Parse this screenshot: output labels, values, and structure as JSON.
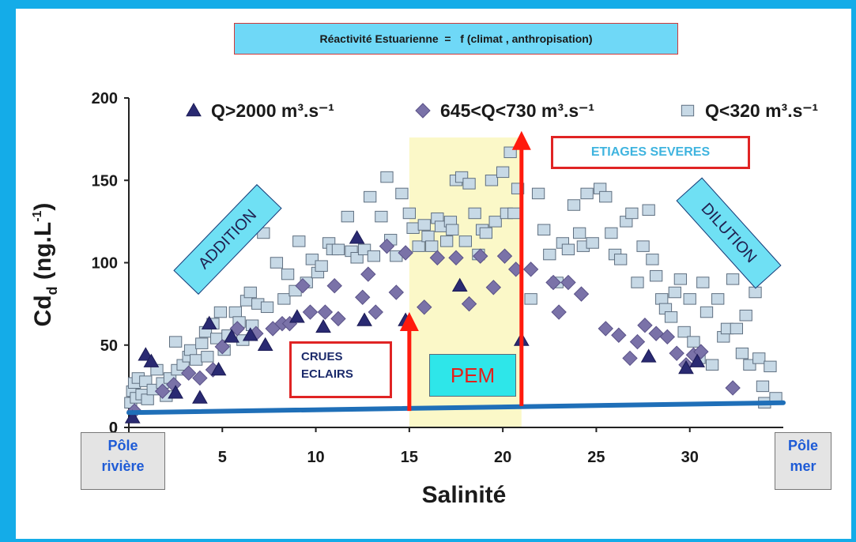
{
  "header": {
    "title": "Réactivité Estuarienne  =   f (climat , anthropisation)"
  },
  "chart_data": {
    "type": "scatter",
    "xlabel": "Salinité",
    "ylabel_main": "Cd",
    "ylabel_sub": "d",
    "ylabel_rest": " (ng.L",
    "ylabel_sup": "-1",
    "ylabel_end": ")",
    "xlim": [
      0,
      35
    ],
    "ylim": [
      0,
      200
    ],
    "x_ticks": [
      "0",
      "5",
      "10",
      "15",
      "20",
      "25",
      "30"
    ],
    "x_tick_values": [
      0,
      5,
      10,
      15,
      20,
      25,
      30
    ],
    "y_ticks": [
      "0",
      "50",
      "100",
      "150",
      "200"
    ],
    "y_tick_values": [
      0,
      50,
      100,
      150,
      200
    ],
    "legend": [
      {
        "name": "Q>2000 m³.s⁻¹",
        "marker": "triangle",
        "color": "#2a2a72"
      },
      {
        "name": "645<Q<730 m³.s⁻¹",
        "marker": "diamond",
        "color": "#7a72a8"
      },
      {
        "name": "Q<320 m³.s⁻¹",
        "marker": "square",
        "color": "#c7d9e6"
      }
    ],
    "pem_zone_x": [
      15,
      21
    ],
    "pem_zone_ymax": 176,
    "baseline": [
      [
        0,
        9
      ],
      [
        35,
        15
      ]
    ],
    "arrows": [
      {
        "x": 15,
        "y_from": 10,
        "y_to": 70
      },
      {
        "x": 21,
        "y_from": 13,
        "y_to": 180
      }
    ],
    "series": [
      {
        "name": "Q>2000 m³.s⁻¹",
        "marker": "triangle",
        "points": [
          [
            0.2,
            6
          ],
          [
            0.9,
            44
          ],
          [
            1.2,
            40
          ],
          [
            2.5,
            21
          ],
          [
            3.8,
            18
          ],
          [
            4.3,
            63
          ],
          [
            4.8,
            35
          ],
          [
            5.5,
            55
          ],
          [
            6.5,
            56
          ],
          [
            7.3,
            50
          ],
          [
            9.0,
            67
          ],
          [
            10.4,
            61
          ],
          [
            12.2,
            115
          ],
          [
            12.6,
            65
          ],
          [
            14.8,
            65
          ],
          [
            17.7,
            86
          ],
          [
            21.0,
            53
          ],
          [
            27.8,
            43
          ],
          [
            29.8,
            36
          ],
          [
            30.4,
            40
          ]
        ]
      },
      {
        "name": "645<Q<730 m³.s⁻¹",
        "marker": "diamond",
        "points": [
          [
            0.3,
            10
          ],
          [
            1.8,
            22
          ],
          [
            2.4,
            26
          ],
          [
            3.2,
            33
          ],
          [
            3.8,
            30
          ],
          [
            4.5,
            35
          ],
          [
            5.0,
            49
          ],
          [
            5.8,
            60
          ],
          [
            6.8,
            57
          ],
          [
            7.7,
            60
          ],
          [
            8.2,
            63
          ],
          [
            8.6,
            63
          ],
          [
            9.3,
            86
          ],
          [
            9.7,
            70
          ],
          [
            10.5,
            70
          ],
          [
            11.0,
            86
          ],
          [
            11.2,
            66
          ],
          [
            12.5,
            79
          ],
          [
            12.8,
            93
          ],
          [
            13.2,
            70
          ],
          [
            13.8,
            110
          ],
          [
            14.3,
            82
          ],
          [
            14.8,
            106
          ],
          [
            15.8,
            73
          ],
          [
            16.5,
            103
          ],
          [
            17.5,
            103
          ],
          [
            18.2,
            75
          ],
          [
            18.8,
            104
          ],
          [
            19.5,
            85
          ],
          [
            20.1,
            104
          ],
          [
            20.7,
            96
          ],
          [
            21.5,
            96
          ],
          [
            22.7,
            88
          ],
          [
            23.0,
            70
          ],
          [
            23.5,
            88
          ],
          [
            24.2,
            81
          ],
          [
            25.5,
            60
          ],
          [
            26.2,
            56
          ],
          [
            26.8,
            42
          ],
          [
            27.2,
            52
          ],
          [
            27.6,
            62
          ],
          [
            28.2,
            57
          ],
          [
            28.8,
            55
          ],
          [
            29.3,
            45
          ],
          [
            29.8,
            38
          ],
          [
            30.2,
            44
          ],
          [
            30.6,
            46
          ],
          [
            32.3,
            24
          ]
        ]
      },
      {
        "name": "Q<320 m³.s⁻¹",
        "marker": "square",
        "points": [
          [
            0.1,
            15
          ],
          [
            0.2,
            22
          ],
          [
            0.3,
            27
          ],
          [
            0.4,
            18
          ],
          [
            0.5,
            30
          ],
          [
            0.7,
            20
          ],
          [
            0.9,
            28
          ],
          [
            1.0,
            17
          ],
          [
            1.3,
            23
          ],
          [
            1.5,
            35
          ],
          [
            1.8,
            27
          ],
          [
            2.0,
            19
          ],
          [
            2.2,
            30
          ],
          [
            2.5,
            52
          ],
          [
            2.6,
            35
          ],
          [
            2.9,
            38
          ],
          [
            3.2,
            43
          ],
          [
            3.3,
            47
          ],
          [
            3.6,
            41
          ],
          [
            3.9,
            51
          ],
          [
            4.1,
            58
          ],
          [
            4.2,
            43
          ],
          [
            4.5,
            63
          ],
          [
            4.7,
            54
          ],
          [
            4.9,
            70
          ],
          [
            5.1,
            47
          ],
          [
            5.3,
            56
          ],
          [
            5.7,
            70
          ],
          [
            5.9,
            64
          ],
          [
            6.1,
            53
          ],
          [
            6.3,
            77
          ],
          [
            6.5,
            82
          ],
          [
            6.6,
            62
          ],
          [
            6.9,
            75
          ],
          [
            7.2,
            118
          ],
          [
            7.4,
            73
          ],
          [
            7.9,
            100
          ],
          [
            8.3,
            78
          ],
          [
            8.5,
            93
          ],
          [
            8.9,
            83
          ],
          [
            9.1,
            113
          ],
          [
            9.5,
            88
          ],
          [
            9.8,
            102
          ],
          [
            10.1,
            94
          ],
          [
            10.3,
            98
          ],
          [
            10.7,
            112
          ],
          [
            10.9,
            108
          ],
          [
            11.2,
            108
          ],
          [
            11.7,
            128
          ],
          [
            11.9,
            107
          ],
          [
            12.2,
            103
          ],
          [
            12.6,
            108
          ],
          [
            12.9,
            140
          ],
          [
            13.1,
            104
          ],
          [
            13.5,
            128
          ],
          [
            13.8,
            152
          ],
          [
            14.0,
            114
          ],
          [
            14.3,
            104
          ],
          [
            14.6,
            142
          ],
          [
            15.0,
            130
          ],
          [
            15.2,
            121
          ],
          [
            15.5,
            110
          ],
          [
            15.8,
            123
          ],
          [
            16.0,
            116
          ],
          [
            16.2,
            110
          ],
          [
            16.5,
            127
          ],
          [
            16.7,
            122
          ],
          [
            17.0,
            113
          ],
          [
            17.2,
            125
          ],
          [
            17.3,
            120
          ],
          [
            17.5,
            150
          ],
          [
            17.8,
            152
          ],
          [
            18.0,
            113
          ],
          [
            18.2,
            148
          ],
          [
            18.5,
            130
          ],
          [
            18.7,
            105
          ],
          [
            18.9,
            120
          ],
          [
            19.1,
            118
          ],
          [
            19.4,
            150
          ],
          [
            19.6,
            125
          ],
          [
            20.0,
            155
          ],
          [
            20.2,
            130
          ],
          [
            20.4,
            167
          ],
          [
            20.6,
            130
          ],
          [
            20.8,
            145
          ],
          [
            21.5,
            78
          ],
          [
            21.9,
            142
          ],
          [
            22.2,
            120
          ],
          [
            22.5,
            105
          ],
          [
            22.9,
            88
          ],
          [
            23.2,
            112
          ],
          [
            23.5,
            108
          ],
          [
            23.8,
            135
          ],
          [
            24.1,
            118
          ],
          [
            24.3,
            110
          ],
          [
            24.5,
            142
          ],
          [
            24.8,
            112
          ],
          [
            25.2,
            145
          ],
          [
            25.5,
            140
          ],
          [
            25.8,
            118
          ],
          [
            26.0,
            105
          ],
          [
            26.3,
            102
          ],
          [
            26.6,
            125
          ],
          [
            26.9,
            130
          ],
          [
            27.2,
            88
          ],
          [
            27.5,
            110
          ],
          [
            27.8,
            132
          ],
          [
            28.0,
            102
          ],
          [
            28.2,
            92
          ],
          [
            28.5,
            78
          ],
          [
            28.7,
            72
          ],
          [
            29.0,
            67
          ],
          [
            29.2,
            82
          ],
          [
            29.5,
            90
          ],
          [
            29.7,
            58
          ],
          [
            30.0,
            78
          ],
          [
            30.2,
            52
          ],
          [
            30.5,
            42
          ],
          [
            30.7,
            88
          ],
          [
            30.9,
            70
          ],
          [
            31.2,
            38
          ],
          [
            31.5,
            78
          ],
          [
            31.8,
            55
          ],
          [
            32.0,
            60
          ],
          [
            32.3,
            90
          ],
          [
            32.5,
            60
          ],
          [
            32.8,
            45
          ],
          [
            33.0,
            68
          ],
          [
            33.2,
            38
          ],
          [
            33.5,
            82
          ],
          [
            33.7,
            42
          ],
          [
            33.9,
            25
          ],
          [
            34.0,
            15
          ],
          [
            34.3,
            37
          ],
          [
            34.6,
            18
          ]
        ]
      }
    ]
  },
  "annotations": {
    "addition": "ADDITION",
    "dilution": "DILUTION",
    "crues_line1": "CRUES",
    "crues_line2": "ECLAIRS",
    "pem": "PEM",
    "etiages": "ETIAGES SEVERES",
    "pole_riviere_line1": "Pôle",
    "pole_riviere_line2": "rivière",
    "pole_mer_line1": "Pôle",
    "pole_mer_line2": "mer"
  },
  "colors": {
    "frame": "#14ace8",
    "baseline": "#1f6fb8",
    "arrow": "#ff1a0d",
    "pem_zone": "#fbf8c8"
  }
}
